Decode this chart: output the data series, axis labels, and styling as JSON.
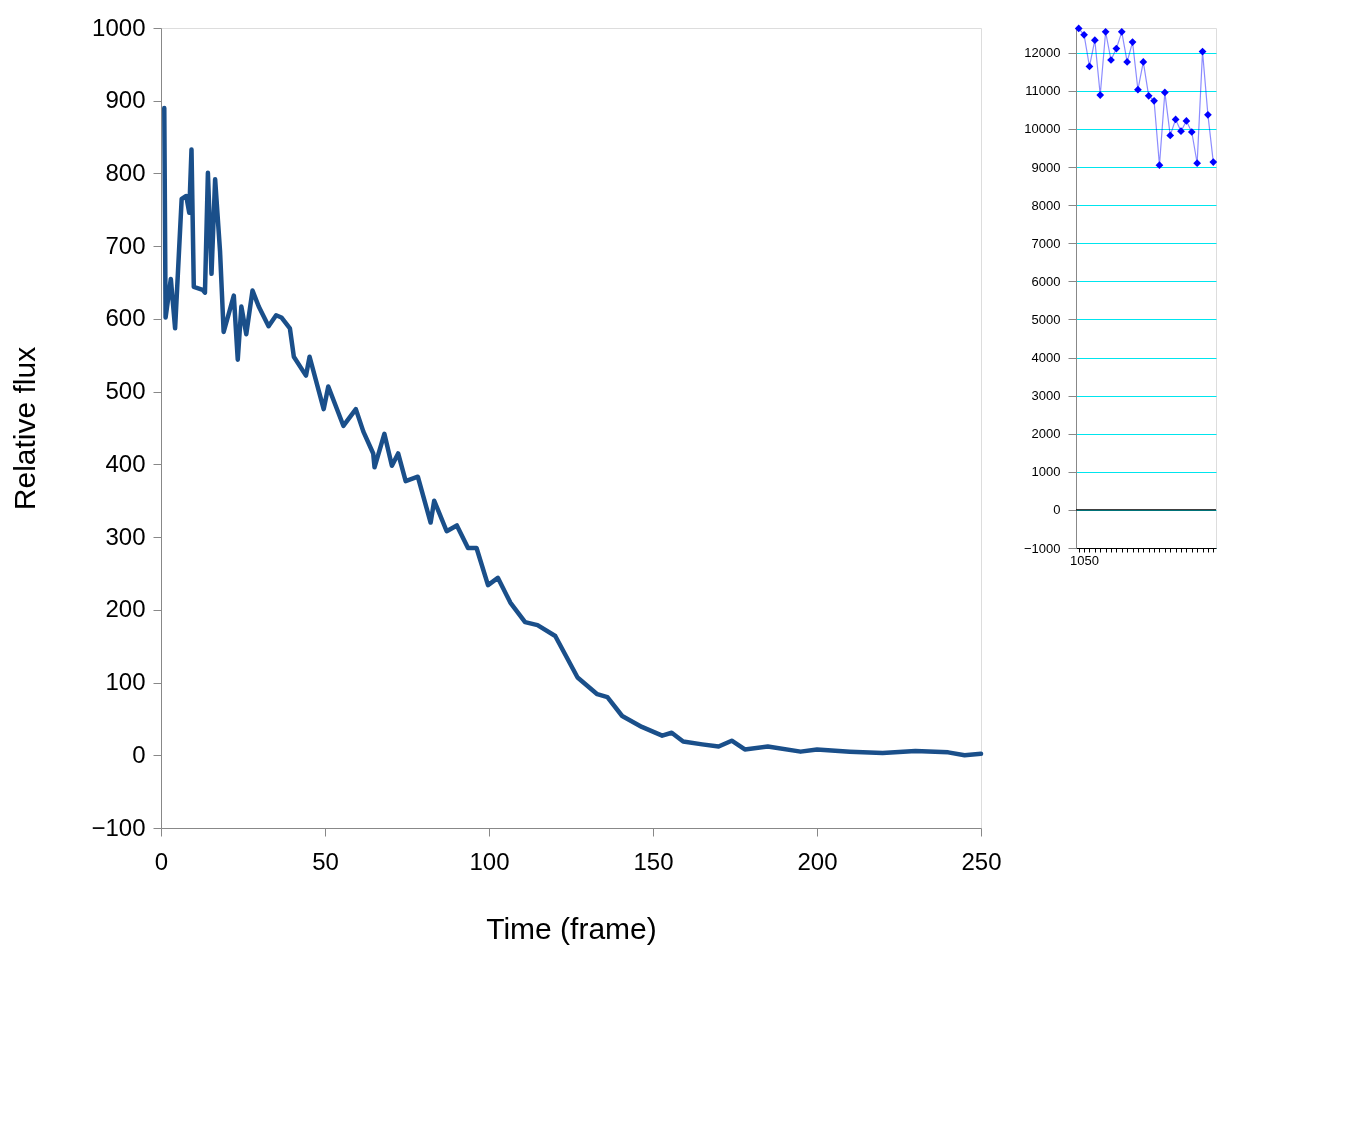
{
  "chart_data": [
    {
      "type": "line",
      "xlabel": "Time (frame)",
      "ylabel": "Relative flux",
      "color": "#1a4f8a",
      "grid": false,
      "x": [
        1.0,
        1.4,
        3.0,
        4.3,
        6.3,
        7.7,
        8.6,
        9.3,
        10.0,
        12.7,
        13.4,
        14.3,
        15.4,
        16.5,
        18.0,
        19.1,
        22.2,
        23.4,
        24.5,
        26.0,
        27.9,
        29.8,
        32.8,
        35.1,
        36.7,
        39.3,
        40.5,
        44.2,
        45.3,
        49.6,
        51.0,
        55.6,
        59.4,
        61.7,
        64.7,
        65.1,
        68.1,
        70.4,
        72.3,
        74.6,
        78.3,
        82.2,
        83.3,
        87.1,
        90.2,
        93.6,
        96.2,
        99.7,
        102.7,
        106.5,
        111.0,
        114.8,
        120.2,
        127.0,
        133.0,
        136.1,
        140.6,
        146.6,
        152.8,
        155.7,
        159.2,
        165.0,
        170.0,
        174.0,
        178.0,
        185.0,
        195.0,
        200.0,
        210.0,
        220.0,
        230.0,
        240.0,
        245.0,
        250.0
      ],
      "values": [
        890,
        602,
        655,
        587,
        765,
        769,
        746,
        833,
        644,
        640,
        636,
        801,
        662,
        792,
        693,
        582,
        632,
        544,
        617,
        579,
        639,
        617,
        590,
        605,
        602,
        587,
        548,
        522,
        548,
        476,
        507,
        453,
        476,
        445,
        415,
        396,
        442,
        398,
        415,
        377,
        383,
        320,
        350,
        308,
        316,
        285,
        285,
        234,
        244,
        210,
        183,
        179,
        164,
        107,
        84,
        80,
        54,
        39,
        27,
        31,
        19,
        15,
        12,
        20,
        8,
        12,
        5,
        8,
        5,
        3,
        6,
        4,
        0,
        2
      ],
      "xlim": [
        0,
        250
      ],
      "xticks": [
        0,
        50,
        100,
        150,
        200,
        250
      ],
      "ylim": [
        -100,
        1000
      ],
      "yticks": [
        -100,
        0,
        100,
        200,
        300,
        400,
        500,
        600,
        700,
        800,
        900,
        1000
      ]
    },
    {
      "type": "line",
      "color": "#0000ff",
      "marker": "diamond",
      "grid": "y",
      "categories": [
        null,
        "1050",
        null,
        null,
        null,
        null,
        null,
        null,
        null,
        null,
        null,
        null,
        null,
        null,
        null,
        null,
        null,
        null,
        null,
        null,
        null,
        null,
        null,
        null,
        null,
        null
      ],
      "values": [
        12640,
        12470,
        11640,
        12330,
        10890,
        12550,
        11810,
        12110,
        12550,
        11760,
        12280,
        11030,
        11760,
        10870,
        10740,
        9050,
        10960,
        9830,
        10250,
        9940,
        10210,
        9920,
        9100,
        12030,
        10370,
        9130
      ],
      "ylim": [
        -1000,
        12650
      ],
      "yticks": [
        -1000,
        0,
        1000,
        2000,
        3000,
        4000,
        5000,
        6000,
        7000,
        8000,
        9000,
        10000,
        11000,
        12000
      ],
      "ref_lines": [
        {
          "axis": "y",
          "value": 0,
          "color": "#000000"
        }
      ]
    }
  ]
}
